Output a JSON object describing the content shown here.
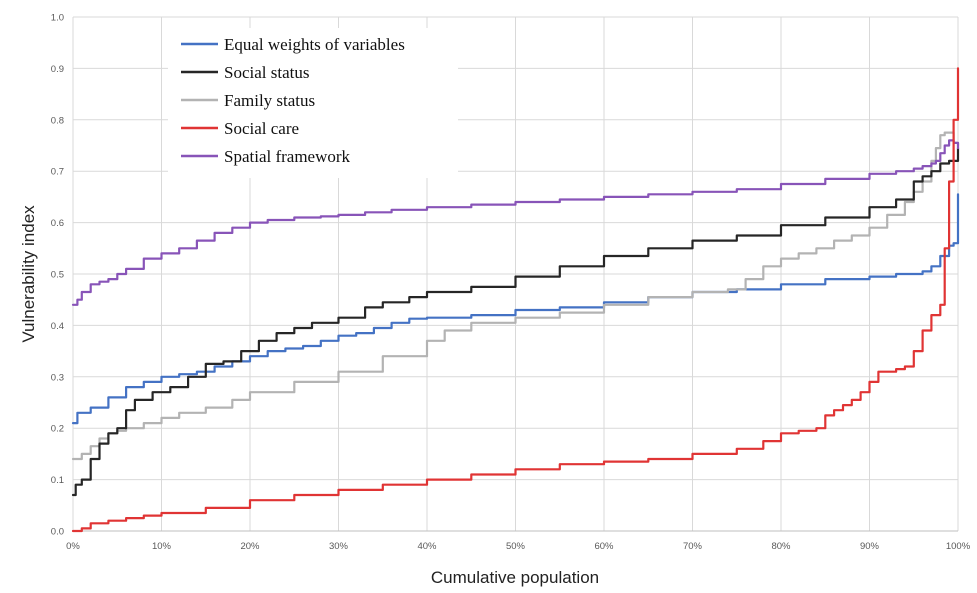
{
  "chart_data": {
    "type": "line",
    "title": "",
    "xlabel": "Cumulative population",
    "ylabel": "Vulnerability index",
    "xlim": [
      0,
      100
    ],
    "ylim": [
      0,
      1.0
    ],
    "x_ticks": [
      "0%",
      "10%",
      "20%",
      "30%",
      "40%",
      "50%",
      "60%",
      "70%",
      "80%",
      "90%",
      "100%"
    ],
    "y_ticks": [
      "0.0",
      "0.1",
      "0.2",
      "0.3",
      "0.4",
      "0.5",
      "0.6",
      "0.7",
      "0.8",
      "0.9",
      "1.0"
    ],
    "grid": true,
    "legend_position": "top-left",
    "series": [
      {
        "name": "Equal weights of variables",
        "color": "#4472c4",
        "x": [
          0,
          0.5,
          2,
          4,
          6,
          8,
          10,
          12,
          14,
          16,
          18,
          20,
          22,
          24,
          26,
          28,
          30,
          32,
          34,
          36,
          38,
          40,
          45,
          50,
          55,
          60,
          65,
          70,
          75,
          80,
          85,
          90,
          93,
          95,
          96,
          97,
          98,
          99,
          99.5,
          100
        ],
        "values": [
          0.21,
          0.23,
          0.24,
          0.26,
          0.28,
          0.29,
          0.3,
          0.305,
          0.31,
          0.32,
          0.33,
          0.34,
          0.35,
          0.355,
          0.36,
          0.37,
          0.38,
          0.385,
          0.395,
          0.405,
          0.413,
          0.415,
          0.42,
          0.43,
          0.435,
          0.445,
          0.455,
          0.465,
          0.47,
          0.48,
          0.49,
          0.495,
          0.5,
          0.5,
          0.505,
          0.515,
          0.535,
          0.555,
          0.56,
          0.655
        ]
      },
      {
        "name": "Social status",
        "color": "#262626",
        "x": [
          0,
          0.3,
          1,
          2,
          3,
          4,
          5,
          6,
          7,
          9,
          11,
          13,
          15,
          17,
          19,
          21,
          23,
          25,
          27,
          30,
          33,
          35,
          38,
          40,
          45,
          50,
          55,
          60,
          65,
          70,
          75,
          80,
          85,
          90,
          93,
          95,
          96,
          97,
          98,
          99,
          100
        ],
        "values": [
          0.07,
          0.09,
          0.1,
          0.14,
          0.17,
          0.19,
          0.2,
          0.235,
          0.255,
          0.27,
          0.28,
          0.3,
          0.325,
          0.33,
          0.35,
          0.37,
          0.385,
          0.395,
          0.405,
          0.415,
          0.435,
          0.445,
          0.455,
          0.465,
          0.475,
          0.495,
          0.515,
          0.535,
          0.55,
          0.565,
          0.575,
          0.595,
          0.61,
          0.63,
          0.645,
          0.68,
          0.69,
          0.7,
          0.715,
          0.72,
          0.745
        ]
      },
      {
        "name": "Family status",
        "color": "#b3b3b3",
        "x": [
          0,
          1,
          2,
          3,
          4,
          5,
          6,
          8,
          10,
          12,
          15,
          18,
          20,
          25,
          30,
          35,
          40,
          42,
          45,
          50,
          55,
          60,
          65,
          70,
          74,
          76,
          78,
          80,
          82,
          84,
          86,
          88,
          90,
          92,
          94,
          95,
          96,
          97,
          97.5,
          98,
          98.5,
          99,
          99.5,
          100
        ],
        "values": [
          0.14,
          0.15,
          0.165,
          0.18,
          0.19,
          0.195,
          0.2,
          0.21,
          0.22,
          0.23,
          0.24,
          0.255,
          0.27,
          0.29,
          0.31,
          0.34,
          0.37,
          0.39,
          0.405,
          0.415,
          0.425,
          0.44,
          0.455,
          0.465,
          0.47,
          0.49,
          0.515,
          0.53,
          0.54,
          0.55,
          0.565,
          0.575,
          0.59,
          0.615,
          0.64,
          0.66,
          0.68,
          0.72,
          0.745,
          0.77,
          0.775,
          0.775,
          0.755,
          0.75
        ]
      },
      {
        "name": "Social care",
        "color": "#e03434",
        "x": [
          0,
          1,
          2,
          4,
          6,
          8,
          10,
          15,
          20,
          25,
          30,
          35,
          40,
          45,
          50,
          55,
          60,
          65,
          70,
          75,
          78,
          80,
          82,
          84,
          85,
          86,
          87,
          88,
          89,
          90,
          91,
          93,
          94,
          95,
          96,
          97,
          98,
          98.5,
          99,
          99.5,
          100
        ],
        "values": [
          0.0,
          0.005,
          0.015,
          0.02,
          0.025,
          0.03,
          0.035,
          0.045,
          0.06,
          0.07,
          0.08,
          0.09,
          0.1,
          0.11,
          0.12,
          0.13,
          0.135,
          0.14,
          0.15,
          0.16,
          0.175,
          0.19,
          0.195,
          0.2,
          0.225,
          0.235,
          0.245,
          0.255,
          0.27,
          0.29,
          0.31,
          0.315,
          0.32,
          0.35,
          0.39,
          0.42,
          0.44,
          0.55,
          0.68,
          0.8,
          0.9
        ]
      },
      {
        "name": "Spatial framework",
        "color": "#8854b8",
        "x": [
          0,
          0.5,
          1,
          2,
          3,
          4,
          5,
          6,
          8,
          10,
          12,
          14,
          16,
          18,
          20,
          22,
          25,
          28,
          30,
          33,
          36,
          40,
          45,
          50,
          55,
          60,
          65,
          70,
          75,
          80,
          85,
          90,
          93,
          95,
          96,
          97,
          97.5,
          98,
          98.5,
          99,
          99.5,
          100
        ],
        "values": [
          0.44,
          0.45,
          0.465,
          0.48,
          0.485,
          0.49,
          0.5,
          0.51,
          0.53,
          0.54,
          0.55,
          0.565,
          0.58,
          0.59,
          0.6,
          0.605,
          0.61,
          0.612,
          0.615,
          0.62,
          0.625,
          0.63,
          0.635,
          0.64,
          0.645,
          0.65,
          0.655,
          0.66,
          0.665,
          0.675,
          0.685,
          0.695,
          0.7,
          0.705,
          0.71,
          0.715,
          0.72,
          0.735,
          0.75,
          0.76,
          0.755,
          0.745
        ]
      }
    ]
  }
}
